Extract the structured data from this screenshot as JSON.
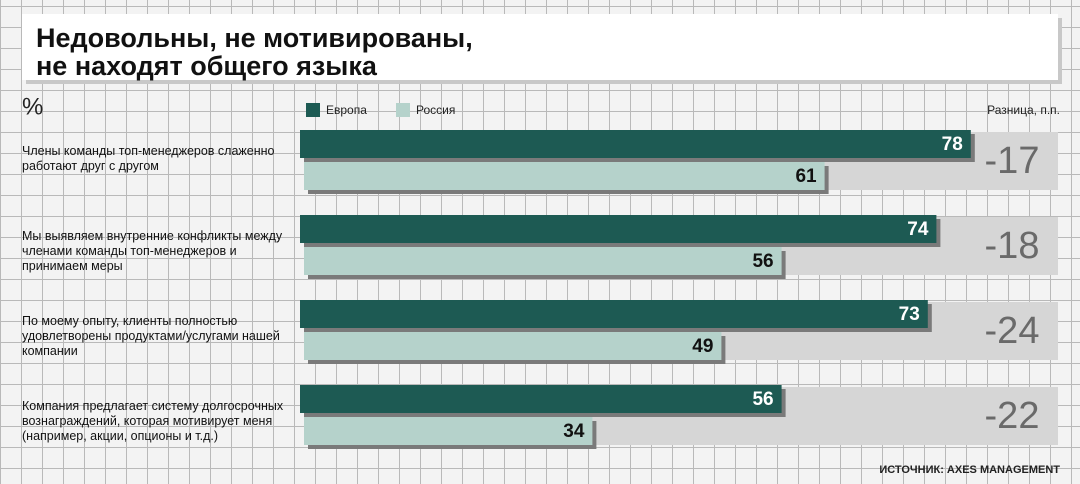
{
  "chart_data": {
    "type": "bar",
    "orientation": "horizontal",
    "title": "Недовольны, не мотивированы,\nне находят общего языка",
    "unit_label": "%",
    "categories": [
      "Члены команды топ-менеджеров слаженно работают друг с другом",
      "Мы выявляем внутренние конфликты между членами команды топ-менеджеров и принимаем меры",
      "По моему опыту, клиенты полностью удовлетворены продуктами/услугами нашей компании",
      "Компания предлагает систему долгосрочных вознаграждений, которая мотивирует меня (например, акции, опционы и т.д.)"
    ],
    "series": [
      {
        "name": "Европа",
        "color": "#1d5a53",
        "values": [
          78,
          74,
          73,
          56
        ]
      },
      {
        "name": "Россия",
        "color": "#b5d2cb",
        "values": [
          61,
          56,
          49,
          34
        ]
      }
    ],
    "difference": {
      "label": "Разница, п.п.",
      "values": [
        -17,
        -18,
        -24,
        -22
      ]
    },
    "source": "ИСТОЧНИК: AXES MANAGEMENT"
  }
}
